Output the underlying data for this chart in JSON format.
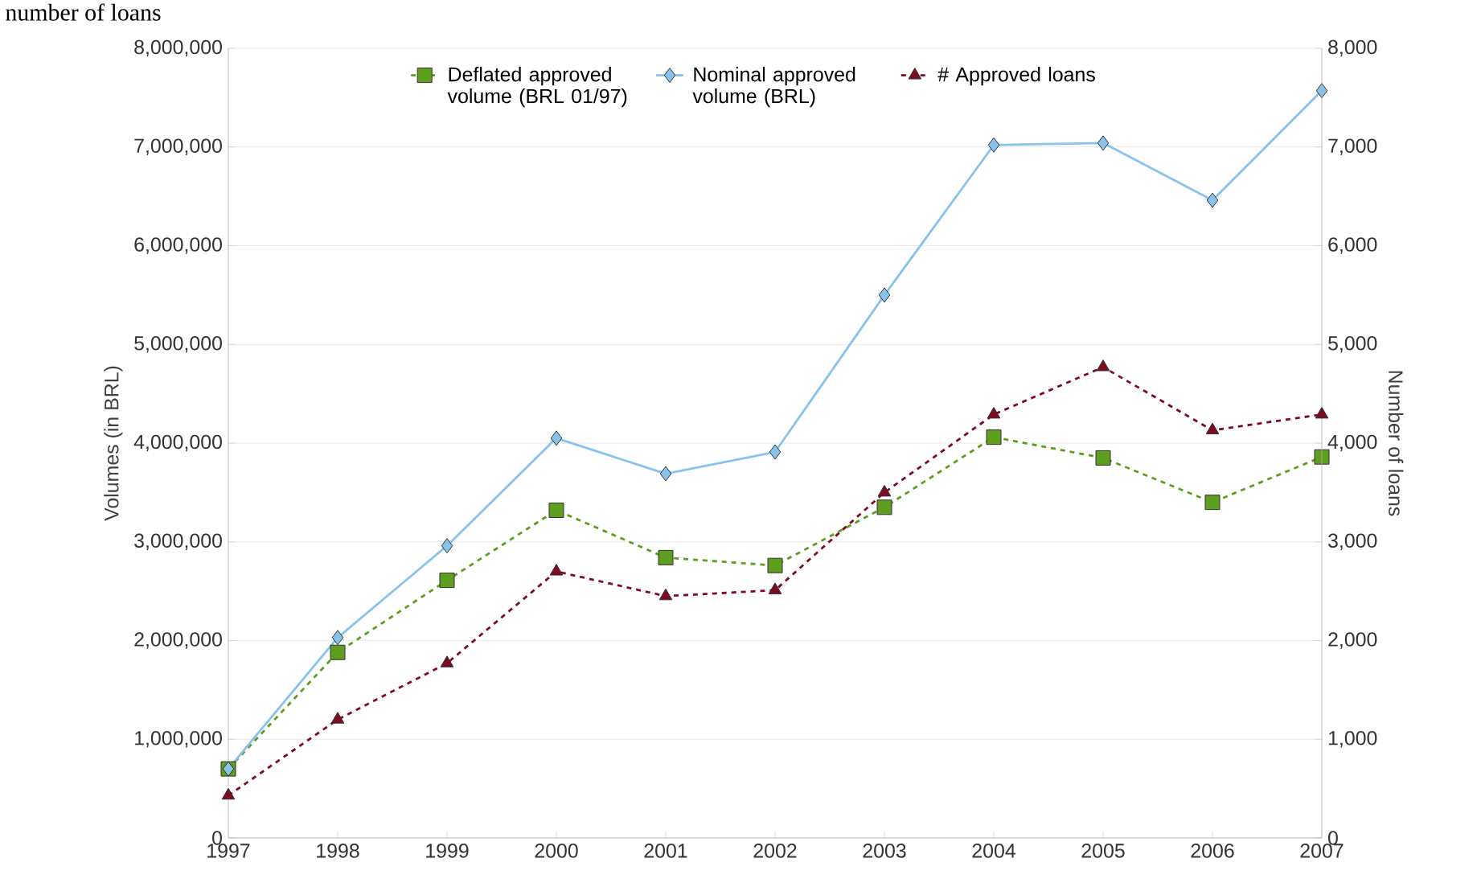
{
  "chart_data": {
    "type": "line",
    "ylabel": "Volumes (in BRL)",
    "y2label": "Number of loans",
    "annotations": [
      "number of loans"
    ],
    "categories": [
      "1997",
      "1998",
      "1999",
      "2000",
      "2001",
      "2002",
      "2003",
      "2004",
      "2005",
      "2006",
      "2007"
    ],
    "series": [
      {
        "name": "Deflated approved volume (BRL 01/97)",
        "color": "#5e9e1e",
        "marker": "square",
        "line_style": "dashed",
        "axis": "y",
        "values": [
          700000,
          1880000,
          2610000,
          3320000,
          2840000,
          2760000,
          3350000,
          4060000,
          3850000,
          3400000,
          3860000
        ]
      },
      {
        "name": "Nominal approved volume (BRL)",
        "color": "#87c3ea",
        "marker": "diamond",
        "line_style": "solid",
        "axis": "y",
        "values": [
          700000,
          2030000,
          2960000,
          4050000,
          3690000,
          3910000,
          5500000,
          7020000,
          7040000,
          6460000,
          7570000
        ]
      },
      {
        "name": "# Approved loans",
        "color": "#7b0c22",
        "marker": "triangle",
        "line_style": "dashed",
        "axis": "y2",
        "values": [
          430,
          1200,
          1770,
          2700,
          2450,
          2510,
          3500,
          4290,
          4770,
          4130,
          4290
        ]
      }
    ],
    "ylim": [
      0,
      8000000
    ],
    "yticks": [
      0,
      {
        "value": 1000000,
        "label": "1,000,000"
      },
      {
        "value": 2000000,
        "label": "2,000,000"
      },
      {
        "value": 3000000,
        "label": "3,000,000"
      },
      {
        "value": 4000000,
        "label": "4,000,000"
      },
      {
        "value": 5000000,
        "label": "5,000,000"
      },
      {
        "value": 6000000,
        "label": "6,000,000"
      },
      {
        "value": 7000000,
        "label": "7,000,000"
      },
      {
        "value": 8000000,
        "label": "8,000,000"
      }
    ],
    "y2lim": [
      0,
      8000
    ],
    "y2ticks": [
      0,
      {
        "value": 1000,
        "label": "1,000"
      },
      {
        "value": 2000,
        "label": "2,000"
      },
      {
        "value": 3000,
        "label": "3,000"
      },
      {
        "value": 4000,
        "label": "4,000"
      },
      {
        "value": 5000,
        "label": "5,000"
      },
      {
        "value": 6000,
        "label": "6,000"
      },
      {
        "value": 7000,
        "label": "7,000"
      },
      {
        "value": 8000,
        "label": "8,000"
      }
    ],
    "grid": "y",
    "legend": "top"
  }
}
